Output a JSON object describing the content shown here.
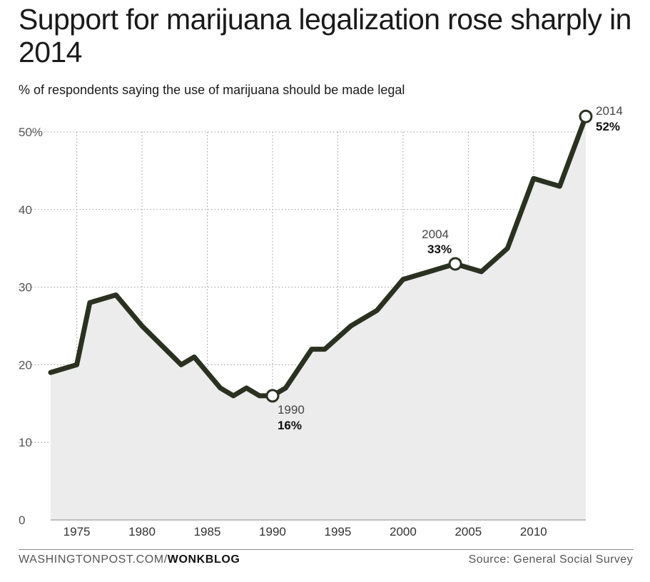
{
  "chart_data": {
    "type": "area",
    "title": "Support for marijuana legalization rose sharply in 2014",
    "subtitle": "% of respondents saying the use of marijuana should be made legal",
    "x": [
      1973,
      1975,
      1976,
      1978,
      1980,
      1983,
      1984,
      1986,
      1987,
      1988,
      1989,
      1990,
      1991,
      1993,
      1994,
      1996,
      1998,
      2000,
      2002,
      2004,
      2006,
      2008,
      2010,
      2012,
      2014
    ],
    "series": [
      {
        "values": [
          19,
          20,
          28,
          29,
          25,
          20,
          21,
          17,
          16,
          17,
          16,
          16,
          17,
          22,
          22,
          25,
          27,
          31,
          32,
          33,
          32,
          35,
          44,
          43,
          52
        ]
      }
    ],
    "y_ticks": [
      "50%",
      "40",
      "30",
      "20",
      "10",
      "0"
    ],
    "y_tick_values": [
      50,
      40,
      30,
      20,
      10,
      0
    ],
    "x_ticks": [
      "1975",
      "1980",
      "1985",
      "1990",
      "1995",
      "2000",
      "2005",
      "2010"
    ],
    "x_tick_values": [
      1975,
      1980,
      1985,
      1990,
      1995,
      2000,
      2005,
      2010
    ],
    "xlim": [
      1973,
      2014
    ],
    "ylim": [
      0,
      50
    ],
    "grid": "dotted",
    "annotations": [
      {
        "x": 1990,
        "y": 16,
        "year": "1990",
        "label": "16%",
        "placement": "below-right"
      },
      {
        "x": 2004,
        "y": 33,
        "year": "2004",
        "label": "33%",
        "placement": "above"
      },
      {
        "x": 2014,
        "y": 52,
        "year": "2014",
        "label": "52%",
        "placement": "right"
      }
    ],
    "colors": {
      "line": "#2b3120",
      "area": "#ececec",
      "grid": "#9a9a9a"
    }
  },
  "footer": {
    "site": "WASHINGTONPOST.COM/",
    "section": "WONKBLOG",
    "source": "Source: General Social Survey"
  }
}
